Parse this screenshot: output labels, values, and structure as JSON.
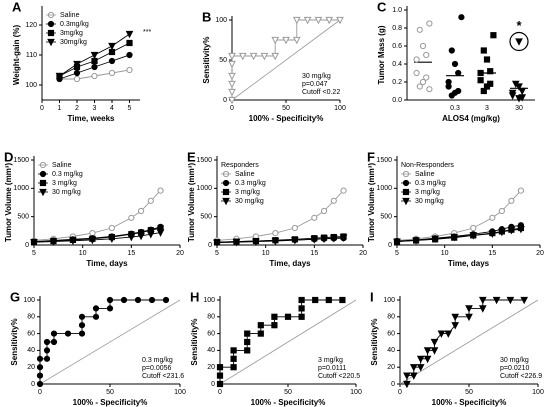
{
  "chart_data": [
    {
      "type": "line",
      "panel": "A",
      "xlabel": "Time, weeks",
      "ylabel": "Weight-gain (%)",
      "x": [
        1,
        2,
        3,
        4,
        5
      ],
      "xlim": [
        0,
        5.6
      ],
      "xticks": [
        0,
        1,
        2,
        3,
        4,
        5
      ],
      "ylim": [
        95,
        125
      ],
      "yticks": [
        100,
        110,
        120
      ],
      "legend": "top-left",
      "annotations": [
        "***"
      ],
      "annotation_corner": "right",
      "series": [
        {
          "name": "Saline",
          "color": "#999999",
          "marker": "open-circle",
          "values": [
            102,
            102,
            103,
            104,
            105
          ]
        },
        {
          "name": "0.3mg/kg",
          "color": "#000000",
          "marker": "circle",
          "values": [
            102,
            104,
            106,
            108,
            110
          ]
        },
        {
          "name": "3mg/kg",
          "color": "#000000",
          "marker": "square",
          "values": [
            103,
            106,
            108,
            111,
            114
          ]
        },
        {
          "name": "30mg/kg",
          "color": "#000000",
          "marker": "triangle-down",
          "values": [
            103,
            107,
            110,
            113,
            117
          ]
        }
      ]
    },
    {
      "type": "line",
      "panel": "B",
      "xlabel": "100% - Specificity%",
      "ylabel": "Sensitivity%",
      "xlim": [
        0,
        100
      ],
      "xticks": [
        0,
        50,
        100
      ],
      "ylim": [
        0,
        100
      ],
      "yticks": [
        0,
        50,
        100
      ],
      "diagonal": true,
      "annotations": [
        "30 mg/kg",
        "p=0.047",
        "Cutoff <0.22"
      ],
      "annotation_corner": "bottom-right",
      "series": [
        {
          "color": "#999999",
          "marker": "open-triangle-down",
          "x": [
            0,
            0,
            0,
            0,
            0,
            0,
            10,
            20,
            30,
            40,
            40,
            50,
            60,
            60,
            70,
            80,
            90,
            100
          ],
          "values": [
            0,
            10,
            20,
            30,
            45,
            55,
            55,
            55,
            55,
            55,
            75,
            75,
            75,
            100,
            100,
            100,
            100,
            100
          ]
        }
      ]
    },
    {
      "type": "strip",
      "panel": "C",
      "xlabel": "ALOS4 (mg/kg)",
      "ylabel": "Tumor Mass (g)",
      "categories": [
        null,
        "0.3",
        "3",
        "30"
      ],
      "ylim": [
        0,
        1
      ],
      "yticks": [
        {
          "value": 0,
          "label": "0.0"
        },
        {
          "value": 0.2,
          "label": "0.2"
        },
        {
          "value": 0.4,
          "label": "0.4"
        },
        {
          "value": 0.6,
          "label": "0.6"
        },
        {
          "value": 0.8,
          "label": "0.8"
        },
        {
          "value": 1,
          "label": "1.0"
        }
      ],
      "annotations": [
        "*"
      ],
      "groups": [
        {
          "color": "#999999",
          "marker": "open-circle",
          "mean": 0.42,
          "values": [
            0.85,
            0.78,
            0.6,
            0.5,
            0.45,
            0.3,
            0.25,
            0.2,
            0.15,
            0.12
          ]
        },
        {
          "color": "#000000",
          "marker": "circle",
          "mean": 0.27,
          "values": [
            0.92,
            0.55,
            0.4,
            0.3,
            0.2,
            0.15,
            0.1,
            0.08,
            0.05
          ]
        },
        {
          "color": "#000000",
          "marker": "square",
          "mean": 0.3,
          "values": [
            0.72,
            0.55,
            0.45,
            0.32,
            0.3,
            0.22,
            0.18,
            0.15,
            0.1
          ]
        },
        {
          "color": "#000000",
          "marker": "triangle-down",
          "mean": 0.13,
          "highlight": 0,
          "values": [
            0.65,
            0.18,
            0.15,
            0.1,
            0.08,
            0.05,
            0.03,
            0.02
          ]
        }
      ]
    },
    {
      "type": "line",
      "panel": "D",
      "xlabel": "Time, days",
      "ylabel": "Tumor Volume (mm³)",
      "x": [
        5,
        7,
        9,
        11,
        13,
        15,
        16,
        17,
        18
      ],
      "xlim": [
        5,
        20
      ],
      "xticks": [
        5,
        10,
        15,
        20
      ],
      "ylim": [
        0,
        1500
      ],
      "yticks": [
        0,
        500,
        1000,
        1500
      ],
      "legend": "top-left",
      "series": [
        {
          "name": "Saline",
          "color": "#999999",
          "marker": "open-circle",
          "values": [
            80,
            110,
            150,
            210,
            300,
            480,
            600,
            780,
            960
          ]
        },
        {
          "name": "0.3 mg/kg",
          "color": "#000000",
          "marker": "circle",
          "values": [
            60,
            80,
            100,
            120,
            150,
            200,
            230,
            270,
            320
          ]
        },
        {
          "name": "3 mg/kg",
          "color": "#000000",
          "marker": "square",
          "values": [
            50,
            70,
            90,
            110,
            140,
            190,
            220,
            260,
            300
          ]
        },
        {
          "name": "30 mg/kg",
          "color": "#000000",
          "marker": "triangle-down",
          "values": [
            50,
            60,
            75,
            90,
            110,
            140,
            160,
            190,
            220
          ]
        }
      ]
    },
    {
      "type": "line",
      "panel": "E",
      "subtitle": "Responders",
      "xlabel": "Time, days",
      "ylabel": "Tumor Volume (mm³)",
      "x": [
        5,
        7,
        9,
        11,
        13,
        15,
        16,
        17,
        18
      ],
      "xlim": [
        5,
        20
      ],
      "xticks": [
        5,
        10,
        15,
        20
      ],
      "ylim": [
        0,
        1500
      ],
      "yticks": [
        0,
        500,
        1000,
        1500
      ],
      "legend": "top-left",
      "series": [
        {
          "name": "Saline",
          "color": "#999999",
          "marker": "open-circle",
          "values": [
            80,
            110,
            150,
            210,
            300,
            480,
            600,
            780,
            960
          ]
        },
        {
          "name": "0.3 mg/kg",
          "color": "#000000",
          "marker": "circle",
          "values": [
            50,
            60,
            70,
            80,
            90,
            100,
            110,
            115,
            120
          ]
        },
        {
          "name": "3 mg/kg",
          "color": "#000000",
          "marker": "square",
          "values": [
            50,
            60,
            70,
            85,
            100,
            120,
            130,
            140,
            150
          ]
        },
        {
          "name": "30 mg/kg",
          "color": "#000000",
          "marker": "triangle-down",
          "values": [
            40,
            50,
            60,
            70,
            85,
            100,
            110,
            120,
            130
          ]
        }
      ]
    },
    {
      "type": "line",
      "panel": "F",
      "subtitle": "Non-Responders",
      "xlabel": "Time, days",
      "ylabel": "Tumor Volume (mm³)",
      "x": [
        5,
        7,
        9,
        11,
        13,
        15,
        16,
        17,
        18
      ],
      "xlim": [
        5,
        20
      ],
      "xticks": [
        5,
        10,
        15,
        20
      ],
      "ylim": [
        0,
        1500
      ],
      "yticks": [
        0,
        500,
        1000,
        1500
      ],
      "legend": "top-left",
      "series": [
        {
          "name": "Saline",
          "color": "#999999",
          "marker": "open-circle",
          "values": [
            80,
            110,
            150,
            210,
            300,
            480,
            600,
            780,
            960
          ]
        },
        {
          "name": "0.3 mg/kg",
          "color": "#000000",
          "marker": "circle",
          "values": [
            70,
            90,
            120,
            150,
            190,
            240,
            280,
            320,
            350
          ]
        },
        {
          "name": "3 mg/kg",
          "color": "#000000",
          "marker": "square",
          "values": [
            60,
            80,
            100,
            130,
            170,
            210,
            240,
            270,
            300
          ]
        },
        {
          "name": "30 mg/kg",
          "color": "#000000",
          "marker": "triangle-down",
          "values": [
            60,
            80,
            110,
            140,
            170,
            200,
            230,
            260,
            280
          ]
        }
      ]
    },
    {
      "type": "line",
      "panel": "G",
      "xlabel": "100% - Specificity%",
      "ylabel": "Sensitivity%",
      "xlim": [
        0,
        100
      ],
      "xticks": [
        0,
        50,
        100
      ],
      "ylim": [
        0,
        100
      ],
      "yticks": [
        0,
        20,
        40,
        60,
        80,
        100
      ],
      "diagonal": true,
      "annotations": [
        "0.3 mg/kg",
        "p=0.0056",
        "Cutoff <231.6"
      ],
      "annotation_corner": "bottom-right",
      "series": [
        {
          "color": "#000000",
          "marker": "circle",
          "x": [
            0,
            0,
            0,
            0,
            5,
            5,
            5,
            10,
            10,
            20,
            30,
            30,
            30,
            40,
            40,
            50,
            50,
            60,
            70,
            80,
            90
          ],
          "values": [
            0,
            10,
            20,
            30,
            30,
            40,
            50,
            50,
            60,
            60,
            60,
            70,
            80,
            80,
            90,
            90,
            100,
            100,
            100,
            100,
            100
          ]
        }
      ]
    },
    {
      "type": "line",
      "panel": "H",
      "xlabel": "100% - Specificity%",
      "ylabel": "Sensitivity%",
      "xlim": [
        0,
        100
      ],
      "xticks": [
        0,
        50,
        100
      ],
      "ylim": [
        0,
        100
      ],
      "yticks": [
        0,
        20,
        40,
        60,
        80,
        100
      ],
      "diagonal": true,
      "annotations": [
        "3 mg/kg",
        "p=0.0111",
        "Cutoff <220.5"
      ],
      "annotation_corner": "bottom-right",
      "series": [
        {
          "color": "#000000",
          "marker": "square",
          "x": [
            0,
            0,
            0,
            10,
            10,
            10,
            20,
            20,
            20,
            30,
            30,
            40,
            40,
            50,
            60,
            60,
            60,
            70,
            80,
            90
          ],
          "values": [
            0,
            10,
            20,
            20,
            30,
            40,
            40,
            50,
            60,
            60,
            70,
            70,
            80,
            80,
            80,
            90,
            100,
            100,
            100,
            100
          ]
        }
      ]
    },
    {
      "type": "line",
      "panel": "I",
      "xlabel": "100% - Specificity%",
      "ylabel": "Sensitivity%",
      "xlim": [
        0,
        100
      ],
      "xticks": [
        0,
        50,
        100
      ],
      "ylim": [
        0,
        100
      ],
      "yticks": [
        0,
        20,
        40,
        60,
        80,
        100
      ],
      "diagonal": true,
      "annotations": [
        "30 mg/kg",
        "p=0.0210",
        "Cutoff <226.9"
      ],
      "annotation_corner": "bottom-right",
      "series": [
        {
          "color": "#000000",
          "marker": "triangle-down",
          "x": [
            5,
            5,
            10,
            10,
            15,
            15,
            20,
            20,
            25,
            25,
            30,
            35,
            40,
            40,
            50,
            50,
            60,
            60,
            70,
            80,
            90
          ],
          "values": [
            0,
            10,
            10,
            20,
            20,
            30,
            30,
            40,
            40,
            50,
            60,
            60,
            70,
            80,
            80,
            90,
            90,
            100,
            100,
            100,
            100
          ]
        }
      ]
    }
  ]
}
